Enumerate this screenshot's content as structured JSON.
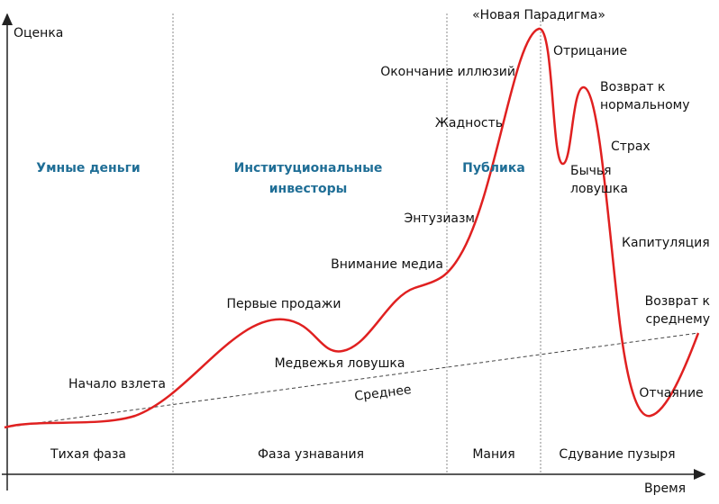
{
  "axes": {
    "y_label": "Оценка",
    "x_label": "Время"
  },
  "participants": [
    {
      "lines": [
        "Умные деньги"
      ]
    },
    {
      "lines": [
        "Институциональные",
        "инвесторы"
      ]
    },
    {
      "lines": [
        "Публика"
      ]
    }
  ],
  "phases": [
    "Тихая фаза",
    "Фаза узнавания",
    "Мания",
    "Сдувание пузыря"
  ],
  "annotations": [
    {
      "lines": [
        "«Новая Парадигма»"
      ]
    },
    {
      "lines": [
        "Окончание иллюзий"
      ]
    },
    {
      "lines": [
        "Отрицание"
      ]
    },
    {
      "lines": [
        "Возврат к",
        "нормальному"
      ]
    },
    {
      "lines": [
        "Жадность"
      ]
    },
    {
      "lines": [
        "Страх"
      ]
    },
    {
      "lines": [
        "Бычья",
        "ловушка"
      ]
    },
    {
      "lines": [
        "Энтузиазм"
      ]
    },
    {
      "lines": [
        "Капитуляция"
      ]
    },
    {
      "lines": [
        "Внимание медиа"
      ]
    },
    {
      "lines": [
        "Первые продажи"
      ]
    },
    {
      "lines": [
        "Возврат к",
        "среднему"
      ]
    },
    {
      "lines": [
        "Медвежья ловушка"
      ]
    },
    {
      "lines": [
        "Начало взлета"
      ]
    },
    {
      "lines": [
        "Отчаяние"
      ]
    }
  ],
  "mean_label": "Среднее"
}
